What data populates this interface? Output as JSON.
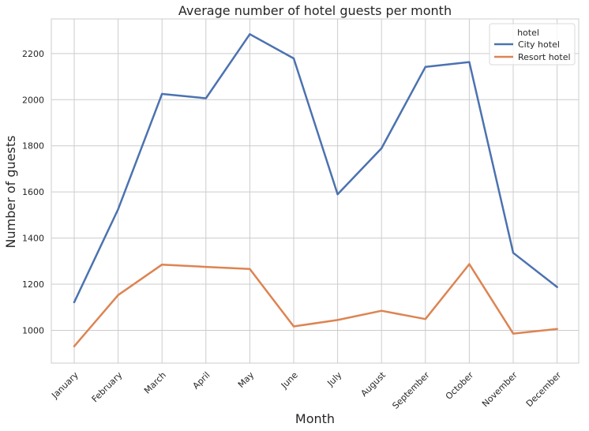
{
  "chart_data": {
    "type": "line",
    "title": "Average number of hotel guests per month",
    "xlabel": "Month",
    "ylabel": "Number of guests",
    "categories": [
      "January",
      "February",
      "March",
      "April",
      "May",
      "June",
      "July",
      "August",
      "September",
      "October",
      "November",
      "December"
    ],
    "series": [
      {
        "name": "City hotel",
        "color": "#4c72b0",
        "values": [
          1122,
          1525,
          2025,
          2006,
          2284,
          2179,
          1590,
          1789,
          2142,
          2163,
          1336,
          1188
        ]
      },
      {
        "name": "Resort hotel",
        "color": "#dd8452",
        "values": [
          931,
          1153,
          1285,
          1275,
          1266,
          1017,
          1045,
          1085,
          1049,
          1287,
          986,
          1006
        ]
      }
    ],
    "ylim": [
      858,
      2350
    ],
    "yticks": [
      1000,
      1200,
      1400,
      1600,
      1800,
      2000,
      2200
    ],
    "grid": true,
    "legend": {
      "title": "hotel",
      "placement": "top-right"
    }
  }
}
